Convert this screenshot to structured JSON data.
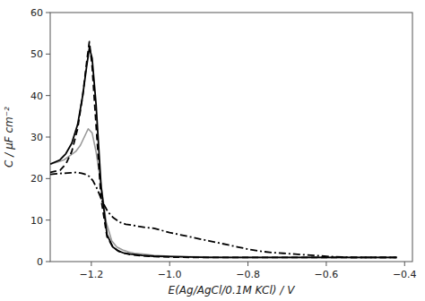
{
  "chart_data": {
    "type": "line",
    "title": "",
    "xlabel": "E(Ag/AgCl/0.1M KCl) / V",
    "ylabel": "C / μF cm⁻²",
    "xlim": [
      -1.305,
      -0.38
    ],
    "ylim": [
      0,
      60
    ],
    "xticks": [
      {
        "value": -1.2,
        "label": "−1.2"
      },
      {
        "value": -1.0,
        "label": "−1.0"
      },
      {
        "value": -0.8,
        "label": "−0.8"
      },
      {
        "value": -0.6,
        "label": "−0.6"
      },
      {
        "value": -0.4,
        "label": "−0.4"
      }
    ],
    "yticks": [
      0,
      10,
      20,
      30,
      40,
      50,
      60
    ],
    "grid": false,
    "series": [
      {
        "color": "#999999",
        "line_style": "solid",
        "x": [
          -1.305,
          -1.285,
          -1.27,
          -1.255,
          -1.24,
          -1.228,
          -1.218,
          -1.208,
          -1.198,
          -1.188,
          -1.175,
          -1.162,
          -1.148,
          -1.135,
          -1.12,
          -1.105,
          -1.09,
          -1.07,
          -1.04,
          -1.0,
          -0.95,
          -0.9,
          -0.85,
          -0.8,
          -0.75,
          -0.7,
          -0.65,
          -0.6,
          -0.55,
          -0.5,
          -0.45,
          -0.42
        ],
        "values": [
          23.5,
          24.0,
          24.5,
          25.5,
          26.5,
          28.0,
          30.0,
          32.0,
          31.0,
          26.5,
          18.5,
          9.5,
          5.0,
          3.5,
          2.8,
          2.3,
          2.0,
          1.8,
          1.5,
          1.3,
          1.2,
          1.1,
          1.0,
          1.0,
          1.0,
          1.0,
          1.0,
          1.0,
          1.0,
          1.0,
          1.0,
          1.0
        ]
      },
      {
        "color": "#000000",
        "line_style": "dashdot",
        "x": [
          -1.305,
          -1.285,
          -1.268,
          -1.252,
          -1.238,
          -1.225,
          -1.215,
          -1.205,
          -1.196,
          -1.185,
          -1.172,
          -1.158,
          -1.143,
          -1.128,
          -1.112,
          -1.097,
          -1.08,
          -1.06,
          -1.04,
          -1.02,
          -1.0,
          -0.975,
          -0.95,
          -0.925,
          -0.9,
          -0.875,
          -0.85,
          -0.825,
          -0.8,
          -0.77,
          -0.74,
          -0.71,
          -0.68,
          -0.65,
          -0.62,
          -0.59,
          -0.56,
          -0.53,
          -0.5,
          -0.47,
          -0.44,
          -0.42
        ],
        "values": [
          21.0,
          21.2,
          21.3,
          21.4,
          21.5,
          21.3,
          21.0,
          20.5,
          19.5,
          17.5,
          14.5,
          12.0,
          10.5,
          9.5,
          9.0,
          8.8,
          8.5,
          8.2,
          8.0,
          7.5,
          7.0,
          6.5,
          6.0,
          5.5,
          5.0,
          4.5,
          4.0,
          3.5,
          3.0,
          2.5,
          2.2,
          2.0,
          1.8,
          1.6,
          1.4,
          1.2,
          1.1,
          1.0,
          1.0,
          1.0,
          1.0,
          1.0
        ]
      },
      {
        "color": "#000000",
        "line_style": "dashed",
        "x": [
          -1.305,
          -1.28,
          -1.265,
          -1.25,
          -1.235,
          -1.222,
          -1.212,
          -1.205,
          -1.198,
          -1.188,
          -1.175,
          -1.16,
          -1.145,
          -1.13,
          -1.115,
          -1.1,
          -1.07,
          -1.04,
          -1.0,
          -0.95,
          -0.9,
          -0.85,
          -0.8,
          -0.75,
          -0.7,
          -0.65,
          -0.6,
          -0.55,
          -0.5,
          -0.45,
          -0.42
        ],
        "values": [
          21.5,
          22.0,
          23.5,
          26.5,
          32.0,
          40.0,
          48.0,
          53.0,
          47.0,
          33.0,
          15.0,
          6.0,
          3.5,
          2.5,
          2.0,
          1.7,
          1.4,
          1.2,
          1.1,
          1.0,
          1.0,
          1.0,
          1.0,
          1.0,
          1.0,
          1.0,
          1.0,
          1.0,
          1.0,
          1.0,
          1.0
        ]
      },
      {
        "color": "#000000",
        "line_style": "solid",
        "x": [
          -1.305,
          -1.28,
          -1.265,
          -1.25,
          -1.235,
          -1.222,
          -1.212,
          -1.205,
          -1.198,
          -1.188,
          -1.175,
          -1.16,
          -1.145,
          -1.13,
          -1.115,
          -1.1,
          -1.07,
          -1.04,
          -1.0,
          -0.95,
          -0.9,
          -0.85,
          -0.8,
          -0.75,
          -0.7,
          -0.65,
          -0.6,
          -0.55,
          -0.5,
          -0.45,
          -0.42
        ],
        "values": [
          23.5,
          24.5,
          26.0,
          28.5,
          33.0,
          40.0,
          47.0,
          51.5,
          49.0,
          38.0,
          18.0,
          6.5,
          3.5,
          2.5,
          2.0,
          1.8,
          1.5,
          1.3,
          1.2,
          1.1,
          1.0,
          1.0,
          1.0,
          1.0,
          1.0,
          1.0,
          1.0,
          1.0,
          1.0,
          1.0,
          1.0
        ]
      }
    ]
  }
}
